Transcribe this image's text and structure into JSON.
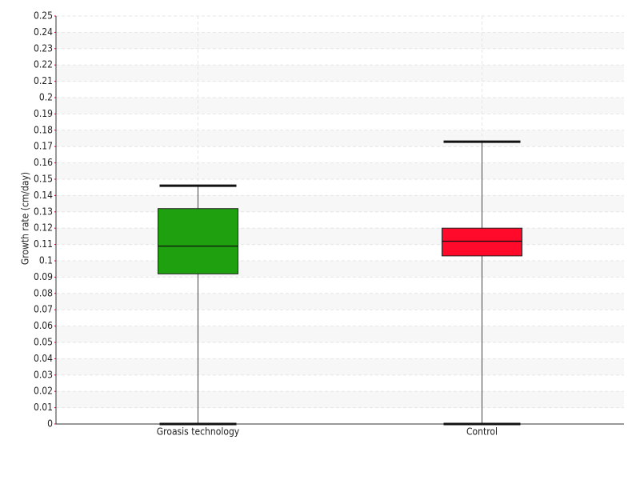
{
  "chart_data": {
    "type": "box",
    "y_label": "Growth rate (cm/day)",
    "categories": [
      "Groasis technology",
      "Control"
    ],
    "colors": [
      "#1fa00e",
      "#ff0a2a"
    ],
    "boxes": [
      {
        "min": 0,
        "q1": 0.092,
        "median": 0.109,
        "q3": 0.132,
        "max": 0.146
      },
      {
        "min": 0,
        "q1": 0.103,
        "median": 0.112,
        "q3": 0.12,
        "max": 0.173
      }
    ],
    "ylim": [
      0,
      0.25
    ],
    "yticks": [
      0,
      0.01,
      0.02,
      0.03,
      0.04,
      0.05,
      0.06,
      0.07,
      0.08,
      0.09,
      0.1,
      0.11,
      0.12,
      0.13,
      0.14,
      0.15,
      0.16,
      0.17,
      0.18,
      0.19,
      0.2,
      0.21,
      0.22,
      0.23,
      0.24,
      0.25
    ],
    "grid": true
  }
}
